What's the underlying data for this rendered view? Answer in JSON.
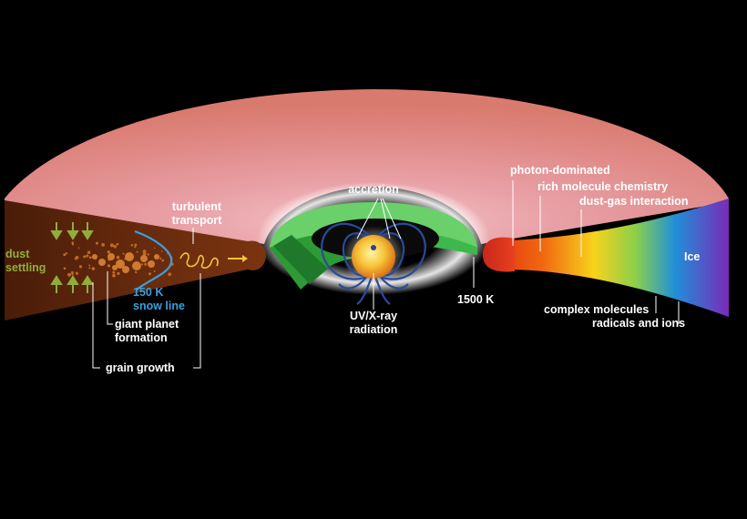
{
  "labels": {
    "dust_settling_1": "dust",
    "dust_settling_2": "settling",
    "turbulent_1": "turbulent",
    "turbulent_2": "transport",
    "snow_line_1": "150 K",
    "snow_line_2": "snow line",
    "giant_planet_1": "giant planet",
    "giant_planet_2": "formation",
    "grain_growth": "grain growth",
    "accretion": "accretion",
    "uv_xray_1": "UV/X-ray",
    "uv_xray_2": "radiation",
    "k1500": "1500 K",
    "photon_dominated": "photon-dominated",
    "rich_chemistry": "rich molecule chemistry",
    "dust_gas": "dust-gas interaction",
    "ice": "Ice",
    "complex_molecules": "complex molecules",
    "radicals_ions": "radicals and ions"
  },
  "colors": {
    "background": "#000000",
    "disk_surface": "#e48a84",
    "dust_label": "#8fae3a",
    "snow_line": "#3aa0dc",
    "cross_section_outer": "#6a2c0e",
    "inner_rim": "#d9412a",
    "inner_disk": "#4cc04c"
  }
}
